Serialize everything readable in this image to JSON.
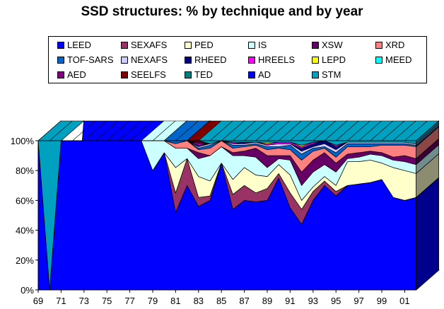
{
  "chart_data": {
    "type": "area",
    "stacked": true,
    "percent": true,
    "three_d": true,
    "title": "SSD structures: % by technique and by year",
    "xlabel": "",
    "ylabel": "",
    "ylim": [
      0,
      100
    ],
    "grid": false,
    "legend_position": "top",
    "x": [
      "69",
      "70",
      "71",
      "72",
      "73",
      "74",
      "75",
      "76",
      "77",
      "78",
      "79",
      "80",
      "81",
      "82",
      "83",
      "84",
      "85",
      "86",
      "87",
      "88",
      "89",
      "90",
      "91",
      "92",
      "93",
      "94",
      "95",
      "96",
      "97",
      "98",
      "99",
      "00",
      "01",
      "02"
    ],
    "x_tick_labels": [
      "69",
      "71",
      "73",
      "75",
      "77",
      "79",
      "81",
      "83",
      "85",
      "87",
      "89",
      "91",
      "93",
      "95",
      "97",
      "99",
      "01"
    ],
    "y_tick_labels": [
      "0%",
      "20%",
      "40%",
      "60%",
      "80%",
      "100%"
    ],
    "series": [
      {
        "name": "LEED",
        "color": "#0000ff",
        "values": [
          100,
          0,
          100,
          100,
          100,
          100,
          100,
          100,
          100,
          100,
          80,
          92,
          52,
          70,
          56,
          60,
          85,
          54,
          60,
          59,
          60,
          75,
          55,
          44,
          60,
          70,
          63,
          70,
          71,
          72,
          74,
          62,
          60,
          62
        ]
      },
      {
        "name": "SEXAFS",
        "color": "#993366",
        "values": [
          0,
          0,
          0,
          0,
          0,
          0,
          0,
          0,
          0,
          0,
          0,
          0,
          13,
          18,
          6,
          3,
          0,
          10,
          10,
          6,
          8,
          3,
          10,
          10,
          6,
          3,
          3,
          0,
          0,
          0,
          0,
          0,
          0,
          0
        ]
      },
      {
        "name": "PED",
        "color": "#ffffcc",
        "values": [
          0,
          0,
          0,
          0,
          0,
          0,
          0,
          0,
          0,
          0,
          0,
          0,
          17,
          0,
          14,
          10,
          0,
          10,
          12,
          12,
          8,
          6,
          12,
          6,
          3,
          3,
          4,
          16,
          15,
          15,
          11,
          20,
          20,
          16
        ]
      },
      {
        "name": "IS",
        "color": "#ccffff",
        "values": [
          0,
          0,
          0,
          0,
          0,
          0,
          0,
          0,
          0,
          0,
          20,
          8,
          13,
          7,
          12,
          17,
          11,
          16,
          8,
          12,
          6,
          4,
          10,
          10,
          10,
          8,
          9,
          2,
          3,
          4,
          5,
          5,
          6,
          6
        ]
      },
      {
        "name": "XSW",
        "color": "#660066",
        "values": [
          0,
          0,
          0,
          0,
          0,
          0,
          0,
          0,
          0,
          0,
          0,
          0,
          0,
          0,
          4,
          0,
          0,
          2,
          3,
          6,
          8,
          2,
          3,
          9,
          8,
          8,
          6,
          3,
          3,
          2,
          2,
          2,
          4,
          4
        ]
      },
      {
        "name": "XRD",
        "color": "#ff8080",
        "values": [
          0,
          0,
          0,
          0,
          0,
          0,
          0,
          0,
          0,
          0,
          0,
          0,
          3,
          5,
          2,
          5,
          4,
          3,
          3,
          2,
          4,
          5,
          4,
          8,
          6,
          3,
          4,
          5,
          4,
          3,
          5,
          8,
          7,
          8
        ]
      },
      {
        "name": "TOF-SARS",
        "color": "#0066cc",
        "values": [
          0,
          0,
          0,
          0,
          0,
          0,
          0,
          0,
          0,
          0,
          0,
          0,
          2,
          0,
          1,
          2,
          0,
          2,
          1,
          1,
          2,
          1,
          3,
          4,
          2,
          1,
          3,
          2,
          2,
          2,
          1,
          1,
          1,
          1
        ]
      },
      {
        "name": "NEXAFS",
        "color": "#ccccff",
        "values": [
          0,
          0,
          0,
          0,
          0,
          0,
          0,
          0,
          0,
          0,
          0,
          0,
          0,
          0,
          1,
          1,
          0,
          1,
          1,
          1,
          1,
          2,
          1,
          2,
          1,
          2,
          2,
          1,
          1,
          1,
          1,
          1,
          1,
          1
        ]
      },
      {
        "name": "RHEED",
        "color": "#000080",
        "values": [
          0,
          0,
          0,
          0,
          0,
          0,
          0,
          0,
          0,
          0,
          0,
          0,
          0,
          0,
          1,
          0,
          0,
          0,
          1,
          0,
          0,
          0,
          0,
          2,
          2,
          2,
          2,
          0,
          0,
          0,
          0,
          0,
          0,
          0
        ]
      },
      {
        "name": "HREELS",
        "color": "#ff00ff",
        "values": [
          0,
          0,
          0,
          0,
          0,
          0,
          0,
          0,
          0,
          0,
          0,
          0,
          0,
          0,
          1,
          0,
          0,
          1,
          0,
          0,
          1,
          1,
          1,
          1,
          1,
          0,
          1,
          0,
          0,
          0,
          0,
          0,
          0,
          0
        ]
      },
      {
        "name": "LEPD",
        "color": "#ffff00",
        "values": [
          0,
          0,
          0,
          0,
          0,
          0,
          0,
          0,
          0,
          0,
          0,
          0,
          0,
          0,
          0,
          0,
          0,
          0,
          0,
          0,
          1,
          0,
          0,
          1,
          0,
          0,
          0,
          0,
          0,
          0,
          0,
          0,
          0,
          0
        ]
      },
      {
        "name": "MEED",
        "color": "#00ffff",
        "values": [
          0,
          0,
          0,
          0,
          0,
          0,
          0,
          0,
          0,
          0,
          0,
          0,
          0,
          0,
          0,
          0,
          0,
          0,
          0,
          0,
          0,
          0,
          0,
          0,
          0,
          0,
          0,
          0,
          0,
          0,
          0,
          0,
          0,
          0
        ]
      },
      {
        "name": "AED",
        "color": "#800080",
        "values": [
          0,
          0,
          0,
          0,
          0,
          0,
          0,
          0,
          0,
          0,
          0,
          0,
          0,
          0,
          1,
          0,
          0,
          0,
          0,
          0,
          0,
          0,
          0,
          0,
          0,
          0,
          0,
          0,
          0,
          0,
          0,
          0,
          0,
          0
        ]
      },
      {
        "name": "SEELFS",
        "color": "#800000",
        "values": [
          0,
          0,
          0,
          0,
          0,
          0,
          0,
          0,
          0,
          0,
          0,
          0,
          0,
          0,
          1,
          0,
          0,
          0,
          0,
          0,
          0,
          0,
          0,
          0,
          0,
          0,
          0,
          0,
          0,
          0,
          0,
          0,
          0,
          0
        ]
      },
      {
        "name": "TED",
        "color": "#008080",
        "values": [
          0,
          0,
          0,
          0,
          0,
          0,
          0,
          0,
          0,
          0,
          0,
          0,
          0,
          0,
          0,
          0,
          0,
          0,
          0,
          0,
          0,
          0,
          0,
          0,
          0,
          0,
          0,
          0,
          0,
          0,
          0,
          0,
          0,
          0
        ]
      },
      {
        "name": "AD",
        "color": "#0000ff",
        "values": [
          0,
          0,
          0,
          0,
          0,
          0,
          0,
          0,
          0,
          0,
          0,
          0,
          0,
          0,
          0,
          0,
          0,
          0,
          0,
          0,
          0,
          0,
          0,
          0,
          0,
          0,
          0,
          0,
          0,
          0,
          0,
          0,
          0,
          0
        ]
      },
      {
        "name": "STM",
        "color": "#00a0c0",
        "values": [
          0,
          100,
          0,
          0,
          0,
          0,
          0,
          0,
          0,
          0,
          0,
          0,
          0,
          0,
          0,
          2,
          0,
          1,
          1,
          1,
          1,
          1,
          1,
          3,
          1,
          0,
          3,
          1,
          1,
          1,
          1,
          1,
          1,
          2
        ]
      }
    ]
  }
}
